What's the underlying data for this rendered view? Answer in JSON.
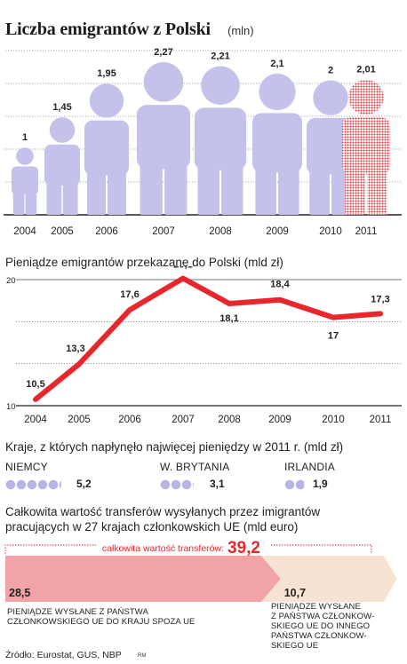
{
  "chart_data": [
    {
      "type": "bar",
      "title": "Liczba emigrantów z Polski",
      "unit": "(mln)",
      "categories": [
        "2004",
        "2005",
        "2006",
        "2007",
        "2008",
        "2009",
        "2010",
        "2011"
      ],
      "values": [
        1,
        1.45,
        1.95,
        2.27,
        2.21,
        2.1,
        2,
        2.01
      ],
      "value_labels": [
        "1",
        "1,45",
        "1,95",
        "2,27",
        "2,21",
        "2,1",
        "2",
        "2,01"
      ],
      "grid": true,
      "marks": "person pictograms",
      "colors": {
        "default": "#c4c2ea",
        "highlight": "#e8303a"
      },
      "highlight_category": "2011"
    },
    {
      "type": "line",
      "title": "Pieniądze emigrantów przekazane do Polski (mld zł)",
      "x": [
        "2004",
        "2005",
        "2006",
        "2007",
        "2008",
        "2009",
        "2010",
        "2011"
      ],
      "y": [
        10.5,
        13.3,
        17.6,
        20.1,
        18.1,
        18.4,
        17,
        17.3
      ],
      "value_labels": [
        "10,5",
        "13,3",
        "17,6",
        "20,1",
        "18,1",
        "18,4",
        "17",
        "17,3"
      ],
      "yticks": [
        "10",
        "20"
      ],
      "ylim": [
        10,
        20
      ],
      "grid": true,
      "color": "#e8262b"
    },
    {
      "type": "bar",
      "title": "Kraje, z których napłynęło najwięcej pieniędzy w 2011 r. (mld zł)",
      "categories": [
        "NIEMCY",
        "W. BRYTANIA",
        "IRLANDIA"
      ],
      "values": [
        5.2,
        3.1,
        1.9
      ],
      "value_labels": [
        "5,2",
        "3,1",
        "1,9"
      ],
      "marks": "circles",
      "color": "#b8b5e6"
    },
    {
      "type": "bar",
      "title": "Całkowita wartość transferów wysyłanych przez imigrantów pracujących w 27 krajach członkowskich UE (mld euro)",
      "total_label": "całkowita wartość transferów:",
      "total": 39.2,
      "total_text": "39,2",
      "categories": [
        "PIENIĄDZE WYSŁANE Z PAŃSTWA CZŁONKOWSKIEGO UE DO KRAJU SPOZA UE",
        "PIENIĄDZE WYSŁANE Z PAŃSTWA CZŁONKOWSKIEGO UE DO INNEGO PAŃSTWA CZŁONKOWSKIEGO UE"
      ],
      "values": [
        28.5,
        10.7
      ],
      "value_labels": [
        "28,5",
        "10,7"
      ],
      "colors": [
        "#f2a3a8",
        "#f6e3d1"
      ],
      "total_color": "#e8262b"
    }
  ],
  "texts": {
    "line_label_lines": [
      "PIENIĄDZE WYSŁANE Z PAŃSTWA",
      "CZŁONKOWSKIEGO UE DO KRAJU SPOZA UE"
    ],
    "line2_label_lines": [
      "PIENIĄDZE WYSŁANE",
      "Z PAŃSTWA CZŁONKOW-",
      "SKIEGO UE DO INNEGO",
      "PAŃSTWA CZŁONKOW-",
      "SKIEGO UE"
    ],
    "transfer_title_line1": "Całkowita wartość transferów wysyłanych przez imigrantów",
    "transfer_title_line2": "pracujących w 27 krajach członkowskich UE (mld euro)",
    "source": "Źródło: Eurostat, GUS, NBP",
    "credit": "RM"
  }
}
